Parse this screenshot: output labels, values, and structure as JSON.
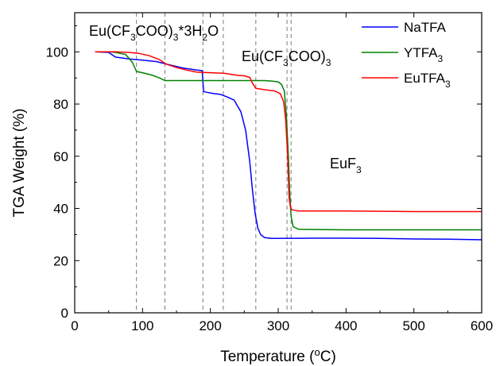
{
  "chart_data": {
    "type": "line",
    "xlabel": "Temperature (°C)",
    "ylabel": "TGA Weight (%)",
    "xlim": [
      0,
      600
    ],
    "ylim": [
      0,
      115
    ],
    "x_ticks": [
      0,
      100,
      200,
      300,
      400,
      500,
      600
    ],
    "y_ticks": [
      0,
      20,
      40,
      60,
      80,
      100
    ],
    "grid": false,
    "legend_position": "top-right",
    "vertical_reference_lines": [
      91,
      133,
      189,
      219,
      267,
      313,
      319
    ],
    "annotations": [
      {
        "text": "Eu(CF3COO)3*3H2O",
        "at": [
          110,
          108
        ]
      },
      {
        "text": "Eu(CF3COO)3",
        "at": [
          310,
          98
        ]
      },
      {
        "text": "EuF3",
        "at": [
          438,
          56
        ]
      }
    ],
    "series": [
      {
        "name": "NaTFA",
        "color": "#0000ff",
        "points": [
          [
            30,
            100
          ],
          [
            50,
            99.8
          ],
          [
            60,
            98
          ],
          [
            80,
            97.3
          ],
          [
            100,
            96.8
          ],
          [
            120,
            96.3
          ],
          [
            140,
            95
          ],
          [
            160,
            93.8
          ],
          [
            180,
            93
          ],
          [
            188,
            92.8
          ],
          [
            190,
            84.8
          ],
          [
            195,
            84.5
          ],
          [
            205,
            84
          ],
          [
            215,
            83.7
          ],
          [
            225,
            82.7
          ],
          [
            235,
            81.5
          ],
          [
            245,
            77
          ],
          [
            252,
            70
          ],
          [
            258,
            58
          ],
          [
            262,
            47
          ],
          [
            266,
            38
          ],
          [
            270,
            32.5
          ],
          [
            274,
            30
          ],
          [
            280,
            28.8
          ],
          [
            290,
            28.5
          ],
          [
            300,
            28.5
          ],
          [
            350,
            28.6
          ],
          [
            400,
            28.6
          ],
          [
            450,
            28.5
          ],
          [
            500,
            28.3
          ],
          [
            550,
            28.2
          ],
          [
            600,
            28
          ]
        ]
      },
      {
        "name": "YTFA3",
        "color": "#008000",
        "points": [
          [
            30,
            100
          ],
          [
            50,
            100
          ],
          [
            60,
            99.8
          ],
          [
            75,
            99
          ],
          [
            85,
            96
          ],
          [
            91,
            92.5
          ],
          [
            100,
            92
          ],
          [
            115,
            91
          ],
          [
            125,
            90
          ],
          [
            133,
            89
          ],
          [
            150,
            89
          ],
          [
            200,
            89
          ],
          [
            250,
            89
          ],
          [
            280,
            89
          ],
          [
            290,
            88.8
          ],
          [
            300,
            88.5
          ],
          [
            305,
            87.5
          ],
          [
            309,
            85
          ],
          [
            312,
            76
          ],
          [
            315,
            60
          ],
          [
            317,
            46
          ],
          [
            319,
            37
          ],
          [
            322,
            33
          ],
          [
            330,
            32
          ],
          [
            400,
            31.8
          ],
          [
            500,
            31.8
          ],
          [
            600,
            31.8
          ]
        ]
      },
      {
        "name": "EuTFA3",
        "color": "#ff0000",
        "points": [
          [
            30,
            100
          ],
          [
            60,
            100
          ],
          [
            80,
            99.8
          ],
          [
            95,
            99.4
          ],
          [
            110,
            98.5
          ],
          [
            125,
            97
          ],
          [
            135,
            95.3
          ],
          [
            150,
            94
          ],
          [
            165,
            93
          ],
          [
            180,
            92.2
          ],
          [
            200,
            92
          ],
          [
            220,
            91.8
          ],
          [
            240,
            91
          ],
          [
            250,
            90.8
          ],
          [
            258,
            90.2
          ],
          [
            262,
            88
          ],
          [
            267,
            86
          ],
          [
            280,
            85.5
          ],
          [
            295,
            85
          ],
          [
            303,
            84
          ],
          [
            308,
            81
          ],
          [
            311,
            74
          ],
          [
            314,
            60
          ],
          [
            316,
            44
          ],
          [
            318,
            40.5
          ],
          [
            320,
            39.5
          ],
          [
            330,
            39
          ],
          [
            400,
            39
          ],
          [
            500,
            38.8
          ],
          [
            600,
            38.8
          ]
        ]
      }
    ]
  }
}
